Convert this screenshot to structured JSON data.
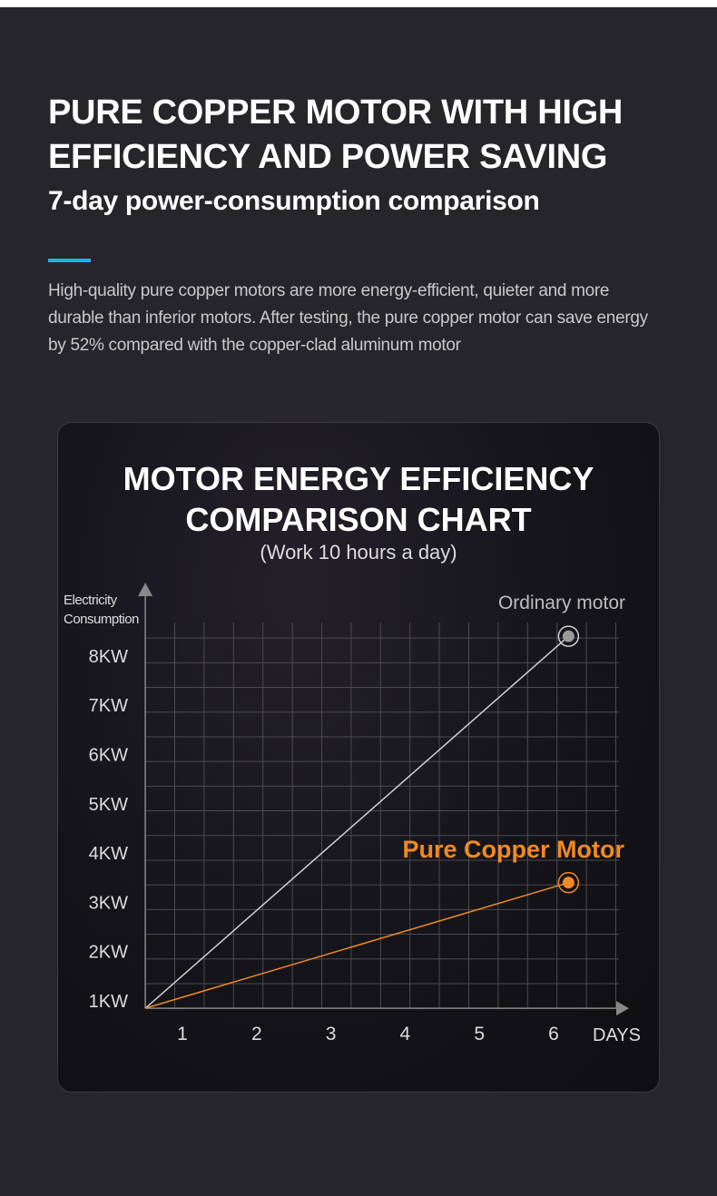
{
  "header": {
    "title_line1": "PURE COPPER MOTOR WITH HIGH",
    "title_line2": "EFFICIENCY AND POWER SAVING",
    "subtitle": "7-day power-consumption comparison",
    "accent_color": "#1ab3ea",
    "description": "High-quality pure copper motors are more energy-efficient, quieter and more durable than inferior motors. After testing, the pure copper motor can save energy by 52% compared with the copper-clad aluminum motor"
  },
  "chart_data": {
    "type": "line",
    "title_line1": "MOTOR ENERGY EFFICIENCY",
    "title_line2": "COMPARISON CHART",
    "subtitle": "(Work 10 hours a day)",
    "ylabel_line1": "Electricity",
    "ylabel_line2": "Consumption",
    "xlabel": "DAYS",
    "x_ticks": [
      "1",
      "2",
      "3",
      "4",
      "5",
      "6"
    ],
    "x_tick_values": [
      1,
      2,
      3,
      4,
      5,
      6
    ],
    "y_ticks": [
      "1KW",
      "2KW",
      "3KW",
      "4KW",
      "5KW",
      "6KW",
      "7KW",
      "8KW"
    ],
    "y_tick_values": [
      1,
      2,
      3,
      4,
      5,
      6,
      7,
      8
    ],
    "xlim": [
      0.5,
      6.8
    ],
    "ylim": [
      0.85,
      9.3
    ],
    "grid": true,
    "series": [
      {
        "name": "Ordinary motor",
        "color": "#d0d0d0",
        "x": [
          0.5,
          6.2
        ],
        "y": [
          0.85,
          8.4
        ]
      },
      {
        "name": "Pure Copper Motor",
        "color": "#f08a24",
        "x": [
          0.5,
          6.2
        ],
        "y": [
          0.85,
          3.4
        ]
      }
    ]
  }
}
